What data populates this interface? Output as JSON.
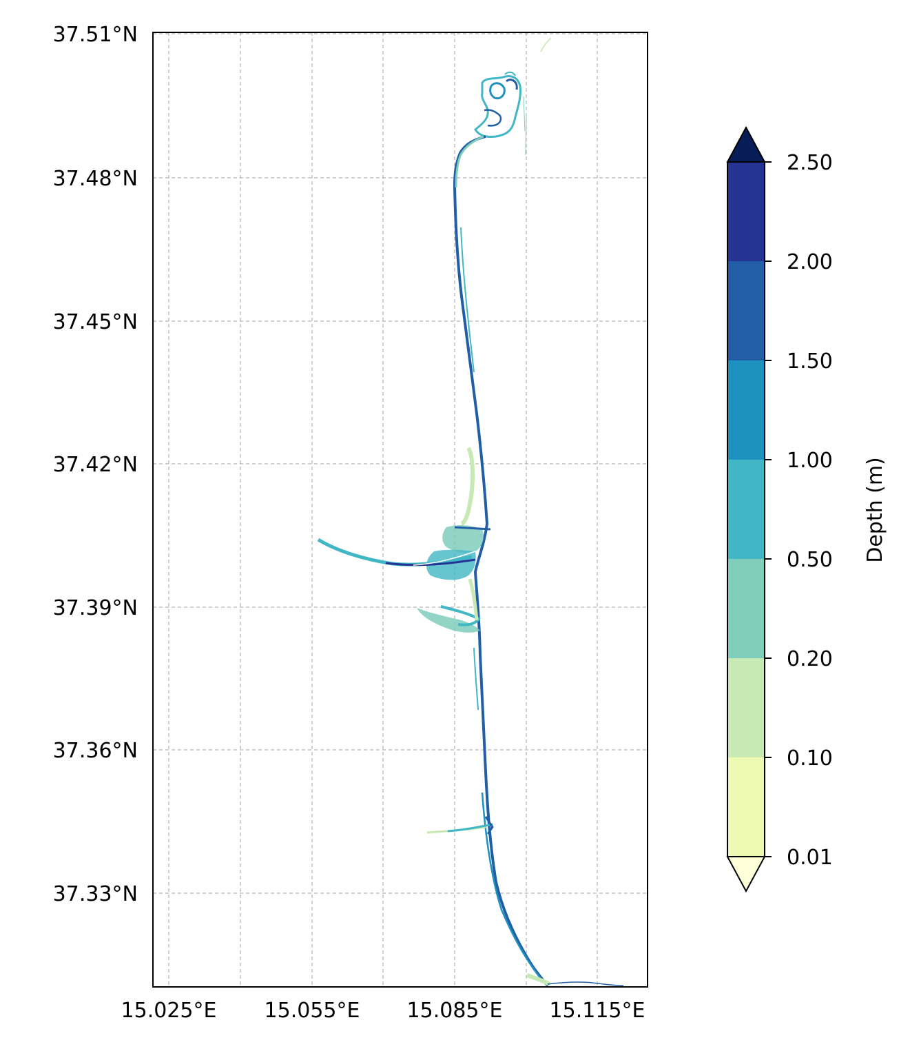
{
  "map": {
    "lat_ticks": [
      "37.51°N",
      "37.48°N",
      "37.45°N",
      "37.42°N",
      "37.39°N",
      "37.36°N",
      "37.33°N"
    ],
    "lon_ticks": [
      "15.025°E",
      "15.055°E",
      "15.085°E",
      "15.115°E"
    ],
    "gridlines": true
  },
  "colorbar": {
    "label": "Depth (m)",
    "ticks": [
      "0.01",
      "0.10",
      "0.20",
      "0.50",
      "1.00",
      "1.50",
      "2.00",
      "2.50"
    ],
    "colors": [
      "#edf8b1",
      "#c7e9b4",
      "#7fcdbb",
      "#41b6c4",
      "#1d91c0",
      "#225ea8",
      "#253494"
    ],
    "under_color": "#ffffd9",
    "over_color": "#081d58",
    "extend": "both"
  }
}
